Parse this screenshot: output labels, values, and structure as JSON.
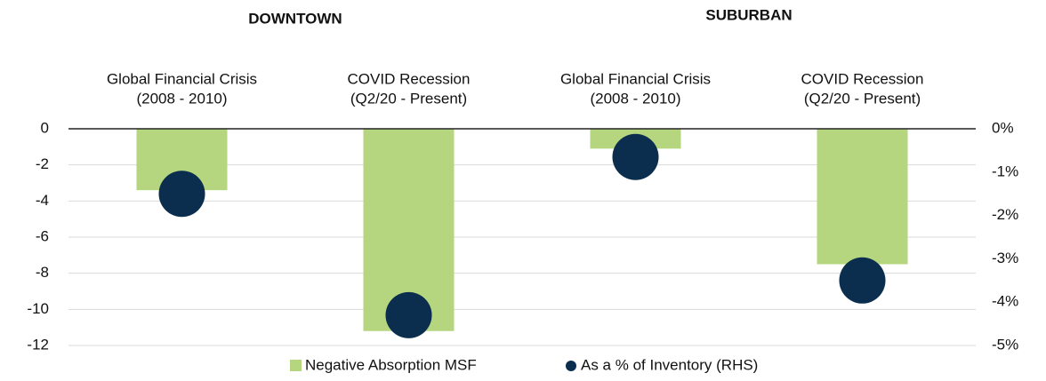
{
  "chart_data": {
    "type": "bar",
    "groups": [
      "DOWNTOWN",
      "SUBURBAN"
    ],
    "categories": [
      [
        "Global Financial Crisis",
        "(2008 - 2010)"
      ],
      [
        "COVID Recession",
        "(Q2/20 - Present)"
      ],
      [
        "Global Financial Crisis",
        "(2008 - 2010)"
      ],
      [
        "COVID Recession",
        "(Q2/20 - Present)"
      ]
    ],
    "series": [
      {
        "name": "Negative Absorption MSF",
        "color": "#b5d67e",
        "type": "bar",
        "values": [
          -3.4,
          -11.2,
          -1.1,
          -7.5
        ]
      },
      {
        "name": "As a % of Inventory (RHS)",
        "color": "#0b2e4f",
        "type": "scatter",
        "axis": "y2",
        "values": [
          -1.5,
          -4.3,
          -0.65,
          -3.5
        ]
      }
    ],
    "ylim": [
      -12,
      0
    ],
    "yticks": [
      0,
      -2,
      -4,
      -6,
      -8,
      -10,
      -12
    ],
    "y2lim": [
      -5,
      0
    ],
    "y2ticks": [
      {
        "value": 0,
        "label": "0%"
      },
      {
        "value": -1,
        "label": "-1%"
      },
      {
        "value": -2,
        "label": "-2%"
      },
      {
        "value": -3,
        "label": "-3%"
      },
      {
        "value": -4,
        "label": "-4%"
      },
      {
        "value": -5,
        "label": "-5%"
      }
    ],
    "grid": true
  }
}
